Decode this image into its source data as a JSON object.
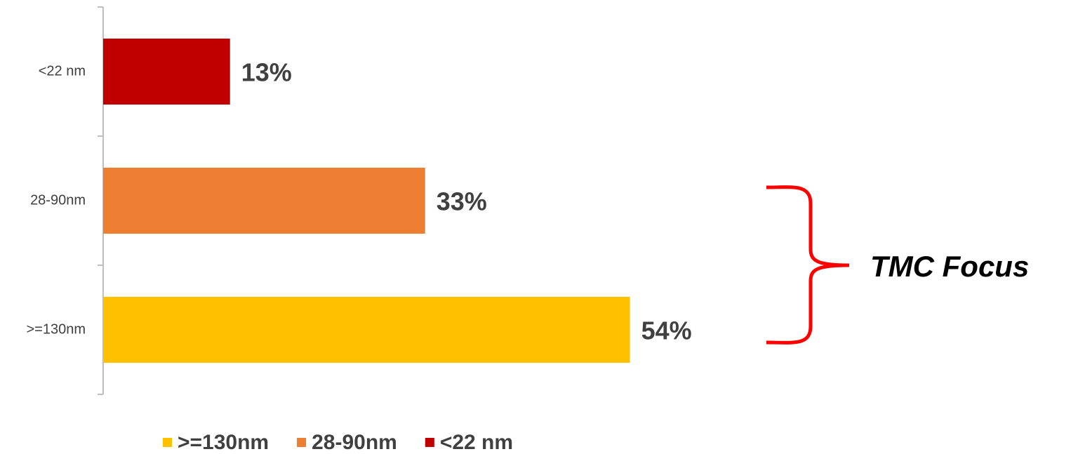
{
  "chart_data": {
    "type": "bar",
    "orientation": "horizontal",
    "categories": [
      "<22 nm",
      "28-90nm",
      ">=130nm"
    ],
    "values": [
      13,
      33,
      54
    ],
    "value_labels": [
      "13%",
      "33%",
      "54%"
    ],
    "colors": [
      "#c00000",
      "#ed7d31",
      "#ffc000"
    ],
    "xlim": [
      0,
      60
    ],
    "legend": [
      {
        "label": ">=130nm",
        "color": "#ffc000"
      },
      {
        "label": "28-90nm",
        "color": "#ed7d31"
      },
      {
        "label": "<22 nm",
        "color": "#c00000"
      }
    ],
    "annotation": "TMC Focus"
  }
}
